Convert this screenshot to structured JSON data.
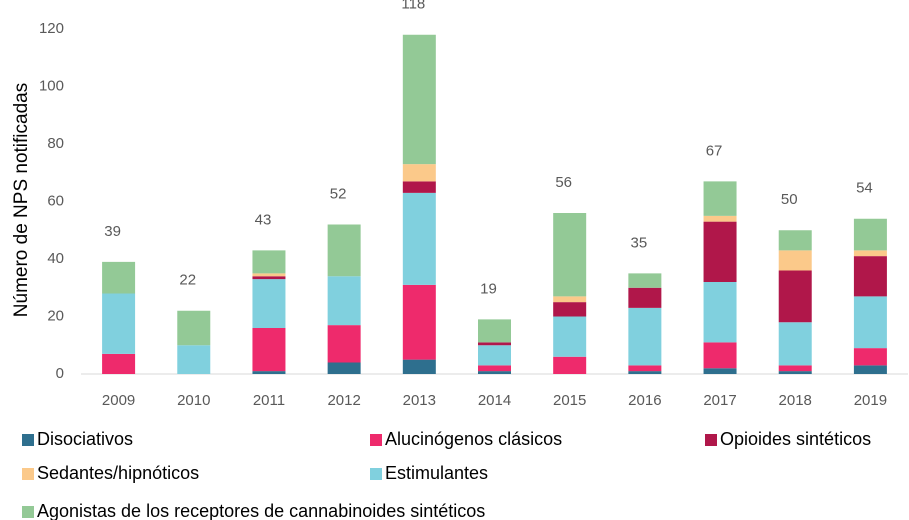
{
  "chart_data": {
    "type": "bar",
    "stacked": true,
    "y_label": "Número de NPS notificadas",
    "categories": [
      "2009",
      "2010",
      "2011",
      "2012",
      "2013",
      "2014",
      "2015",
      "2016",
      "2017",
      "2018",
      "2019"
    ],
    "series": [
      {
        "name": "Disociativos",
        "color": "#2e6f8e",
        "values": [
          0,
          0,
          1,
          4,
          5,
          1,
          0,
          1,
          2,
          1,
          3
        ]
      },
      {
        "name": "Alucinógenos clásicos",
        "color": "#ee2a6c",
        "values": [
          7,
          0,
          15,
          13,
          26,
          2,
          6,
          2,
          9,
          2,
          6
        ]
      },
      {
        "name": "Opioides sintéticos",
        "color": "#b0174a",
        "values": [
          0,
          0,
          1,
          0,
          4,
          1,
          5,
          7,
          21,
          18,
          14
        ]
      },
      {
        "name": "Sedantes/hipnóticos",
        "color": "#fbc98a",
        "values": [
          0,
          0,
          1,
          0,
          6,
          0,
          2,
          0,
          2,
          7,
          2
        ]
      },
      {
        "name": "Estimulantes",
        "color": "#80d0de",
        "values": [
          21,
          10,
          17,
          17,
          32,
          7,
          14,
          20,
          21,
          15,
          18
        ]
      },
      {
        "name": "Agonistas de los receptores de cannabinoides sintéticos",
        "color": "#93c996",
        "values": [
          11,
          12,
          8,
          18,
          45,
          8,
          29,
          5,
          12,
          7,
          11
        ]
      }
    ],
    "totals": [
      39,
      22,
      43,
      52,
      118,
      19,
      56,
      35,
      67,
      50,
      54
    ],
    "ylim": [
      0,
      120
    ],
    "yticks": [
      0,
      20,
      40,
      60,
      80,
      100,
      120
    ],
    "grid": false
  }
}
